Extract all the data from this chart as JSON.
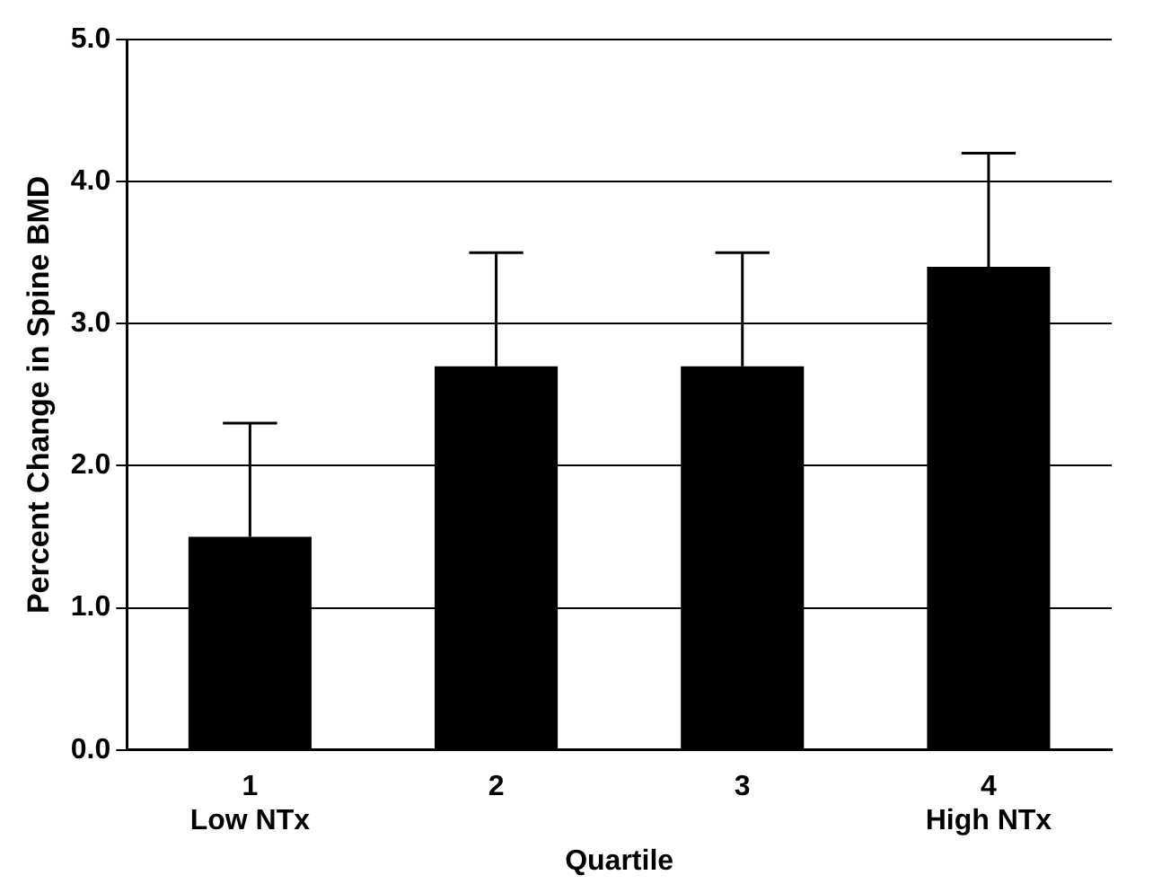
{
  "chart_data": {
    "type": "bar",
    "xlabel": "Quartile",
    "ylabel": "Percent Change in Spine BMD",
    "categories": [
      "1\nLow NTx",
      "2",
      "3",
      "4\nHigh NTx"
    ],
    "values": [
      1.5,
      2.7,
      2.7,
      3.4
    ],
    "errors": [
      [
        1.5,
        2.3
      ],
      [
        2.7,
        3.5
      ],
      [
        2.7,
        3.5
      ],
      [
        3.4,
        4.2
      ]
    ],
    "color": "#000000",
    "ylim": [
      0,
      5
    ],
    "yticks": [
      {
        "value": 0,
        "label": "0.0"
      },
      {
        "value": 1,
        "label": "1.0"
      },
      {
        "value": 2,
        "label": "2.0"
      },
      {
        "value": 3,
        "label": "3.0"
      },
      {
        "value": 4,
        "label": "4.0"
      },
      {
        "value": 5,
        "label": "5.0"
      }
    ],
    "grid": "y"
  }
}
